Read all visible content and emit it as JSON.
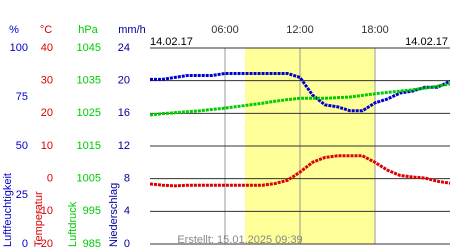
{
  "chart_data": {
    "type": "line",
    "date_left": "14.02.17",
    "date_right": "14.02.17",
    "footer": "Erstellt: 15.01.2025 09:39",
    "xlim": [
      0,
      24
    ],
    "xticks": [
      {
        "value": 6,
        "label": "06:00"
      },
      {
        "value": 12,
        "label": "12:00"
      },
      {
        "value": 18,
        "label": "18:00"
      }
    ],
    "highlight": [
      7.6,
      18
    ],
    "highlight_color": "#ffff99",
    "axes": [
      {
        "name": "Luftfeuchtigkeit",
        "unit": "%",
        "color": "#0000cc",
        "ylim": [
          0,
          100
        ],
        "yticks": [
          0,
          25,
          50,
          75,
          100
        ]
      },
      {
        "name": "Temperatur",
        "unit": "°C",
        "color": "#dd0000",
        "ylim": [
          -20,
          40
        ],
        "yticks": [
          -20,
          -10,
          0,
          10,
          20,
          30,
          40
        ]
      },
      {
        "name": "Luftdruck",
        "unit": "hPa",
        "color": "#00cc00",
        "ylim": [
          985,
          1045
        ],
        "yticks": [
          985,
          995,
          1005,
          1015,
          1025,
          1035,
          1045
        ]
      },
      {
        "name": "Niederschlag",
        "unit": "mm/h",
        "color": "#000099",
        "ylim": [
          0,
          24
        ],
        "yticks": [
          0,
          4,
          8,
          12,
          16,
          20,
          24
        ]
      }
    ],
    "x": [
      0,
      1,
      2,
      3,
      4,
      5,
      6,
      7,
      8,
      9,
      10,
      11,
      12,
      13,
      14,
      15,
      16,
      17,
      18,
      19,
      20,
      21,
      22,
      23,
      24
    ],
    "series": [
      {
        "axis": 0,
        "values": [
          84,
          84,
          85,
          86,
          86,
          86,
          87,
          87,
          87,
          87,
          87,
          87,
          85,
          76,
          71,
          70,
          68,
          68,
          72,
          74,
          77,
          78,
          80,
          80,
          83
        ]
      },
      {
        "axis": 2,
        "values": [
          1024.5,
          1024.9,
          1025.2,
          1025.5,
          1025.8,
          1026.2,
          1026.6,
          1027.1,
          1027.6,
          1028.1,
          1028.7,
          1029.2,
          1029.6,
          1029.6,
          1029.6,
          1029.8,
          1030,
          1030.5,
          1031,
          1031.4,
          1031.8,
          1032.2,
          1032.7,
          1033.3,
          1034
        ]
      },
      {
        "axis": 1,
        "values": [
          -1.6,
          -2,
          -2.2,
          -2,
          -2,
          -2,
          -2,
          -2,
          -2,
          -2,
          -1.5,
          -0.5,
          2,
          5,
          6.5,
          7,
          7,
          7,
          5,
          2.6,
          1,
          0.5,
          0.2,
          -0.8,
          -1.4
        ]
      }
    ]
  }
}
